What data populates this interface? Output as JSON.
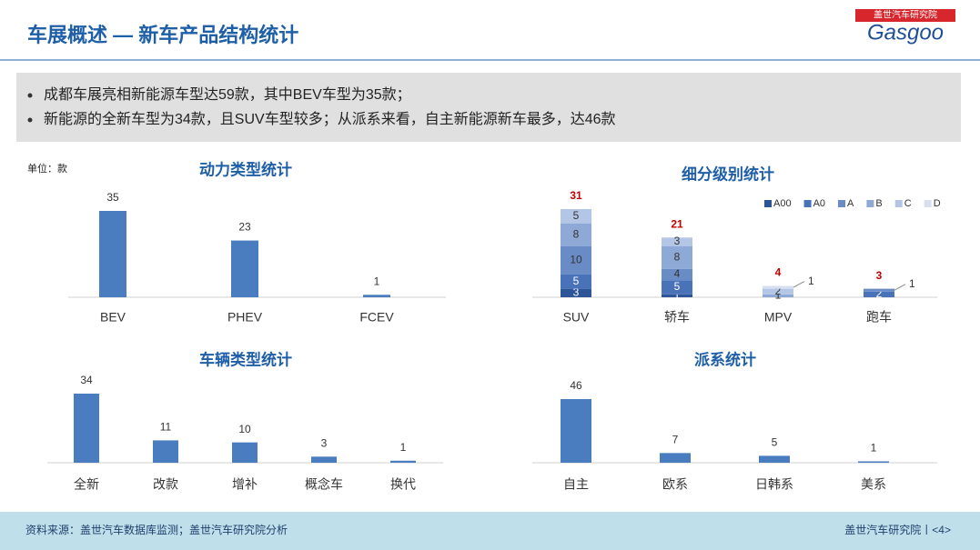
{
  "header": {
    "title": "车展概述 — 新车产品结构统计",
    "logo_cn": "盖世汽车研究院",
    "logo_en": "Gasgoo"
  },
  "bullets": [
    "成都车展亮相新能源车型达59款，其中BEV车型为35款；",
    "新能源的全新车型为34款，且SUV车型较多；从派系来看，自主新能源新车最多，达46款"
  ],
  "unit": "单位：款",
  "chart_data": [
    {
      "type": "bar",
      "title": "动力类型统计",
      "categories": [
        "BEV",
        "PHEV",
        "FCEV"
      ],
      "values": [
        35,
        23,
        1
      ],
      "color": "#4a7dbf"
    },
    {
      "type": "stacked_bar",
      "title": "细分级别统计",
      "categories": [
        "SUV",
        "轿车",
        "MPV",
        "跑车"
      ],
      "series": [
        {
          "name": "A00",
          "color": "#2e5597",
          "values": [
            3,
            1,
            0,
            0
          ]
        },
        {
          "name": "A0",
          "color": "#4a72b8",
          "values": [
            5,
            5,
            0,
            2
          ]
        },
        {
          "name": "A",
          "color": "#6a8cc6",
          "values": [
            10,
            4,
            0,
            1
          ]
        },
        {
          "name": "B",
          "color": "#8ea9d6",
          "values": [
            8,
            8,
            1,
            0
          ]
        },
        {
          "name": "C",
          "color": "#b4c6e6",
          "values": [
            5,
            3,
            2,
            0
          ]
        },
        {
          "name": "D",
          "color": "#d6e0f1",
          "values": [
            0,
            0,
            1,
            0
          ]
        }
      ],
      "totals": [
        31,
        21,
        4,
        3
      ],
      "totals_color": "#c00000"
    },
    {
      "type": "bar",
      "title": "车辆类型统计",
      "categories": [
        "全新",
        "改款",
        "增补",
        "概念车",
        "换代"
      ],
      "values": [
        34,
        11,
        10,
        3,
        1
      ],
      "color": "#4a7dbf"
    },
    {
      "type": "bar",
      "title": "派系统计",
      "categories": [
        "自主",
        "欧系",
        "日韩系",
        "美系"
      ],
      "values": [
        46,
        7,
        5,
        1
      ],
      "color": "#4a7dbf"
    }
  ],
  "footer": {
    "source": "资料来源：盖世汽车数据库监测；盖世汽车研究院分析",
    "page": "盖世汽车研究院丨<4>"
  }
}
